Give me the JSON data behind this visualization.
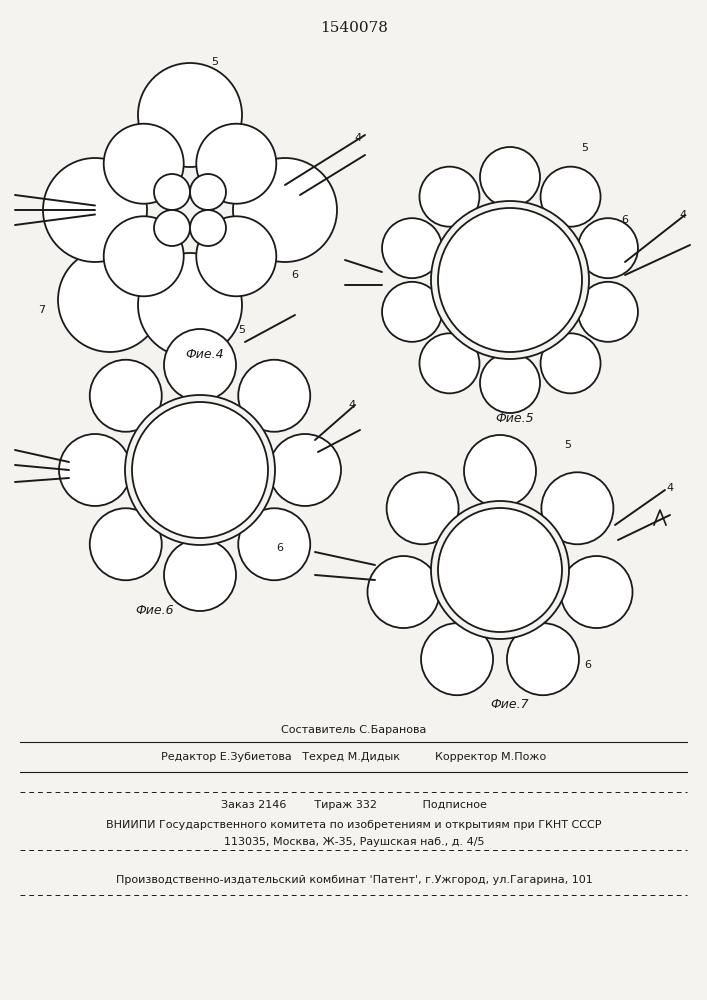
{
  "title": "1540078",
  "bg_color": "#f5f3ef",
  "line_color": "#1a1a1a",
  "lw": 1.3,
  "fig4_label": "Фие.4",
  "fig5_label": "Фие.5",
  "fig6_label": "Фие.6",
  "fig7_label": "Фие.7",
  "footer_line0": "Составитель С.Баранова",
  "footer_line1": "Редактор Е.Зубиетова   Техред М.Дидык          Корректор М.Пожо",
  "footer_line2": "Заказ 2146        Тираж 332             Подписное",
  "footer_line3": "ВНИИПИ Государственного комитета по изобретениям и открытиям при ГКНТ СССР",
  "footer_line4": "113035, Москва, Ж-35, Раушская наб., д. 4/5",
  "footer_line5": "Производственно-издательский комбинат 'Патент', г.Ужгород, ул.Гагарина, 101"
}
